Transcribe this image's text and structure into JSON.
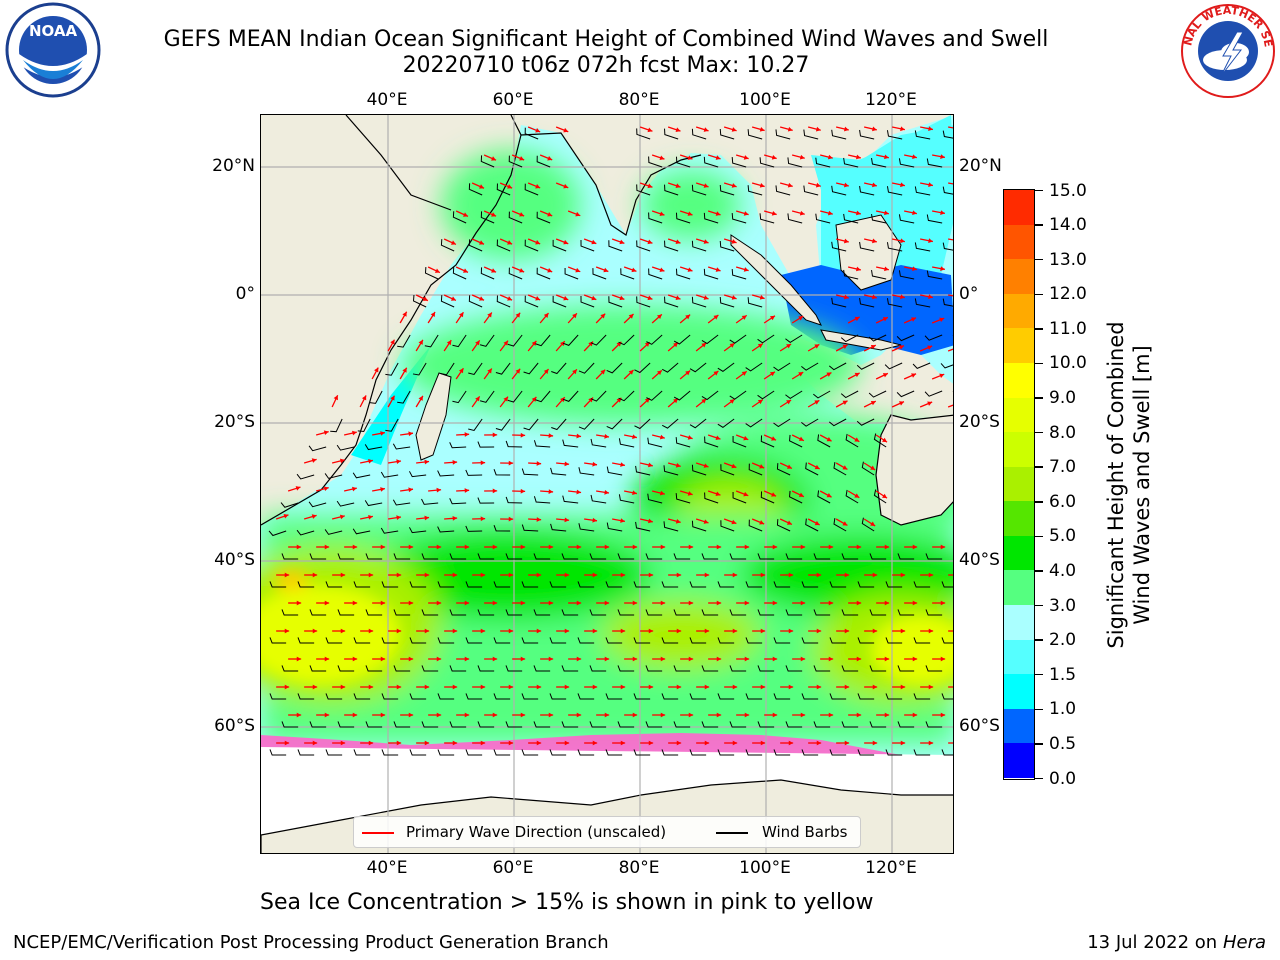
{
  "header": {
    "title": "GEFS MEAN Indian Ocean Significant Height of Combined Wind Waves and Swell",
    "subtitle": "20220710 t06z 072h fcst   Max: 10.27"
  },
  "logos": {
    "left": {
      "icon": "noaa-logo",
      "text": "NOAA"
    },
    "right": {
      "icon": "nws-logo",
      "text": "NATIONAL WEATHER SERVICE"
    }
  },
  "map": {
    "lon_labels": [
      "40°E",
      "60°E",
      "80°E",
      "100°E",
      "120°E"
    ],
    "lat_labels": [
      "20°N",
      "0°",
      "20°S",
      "40°S",
      "60°S"
    ],
    "colors": {
      "land": "#efedde",
      "ice": "#ffffff",
      "grid": "#b0b0b0"
    }
  },
  "colorbar": {
    "title_line1": "Significant Height of Combined",
    "title_line2": "Wind Waves and Swell [m]",
    "labels": [
      "0.0",
      "0.5",
      "1.0",
      "1.5",
      "2.0",
      "3.0",
      "4.0",
      "5.0",
      "6.0",
      "7.0",
      "8.0",
      "9.0",
      "10.0",
      "11.0",
      "12.0",
      "13.0",
      "14.0",
      "15.0"
    ],
    "colors": [
      "#0000ff",
      "#0066ff",
      "#00ffff",
      "#55ffff",
      "#aaffff",
      "#55ff80",
      "#00e600",
      "#55e600",
      "#aaf000",
      "#ccff00",
      "#e6ff00",
      "#ffff00",
      "#ffcc00",
      "#ffaa00",
      "#ff8000",
      "#ff5500",
      "#ff2b00"
    ]
  },
  "legend": {
    "wave_label": "Primary Wave Direction (unscaled)",
    "wind_label": "Wind Barbs",
    "wave_color": "#ff0000",
    "wind_color": "#000000"
  },
  "notes": {
    "sea_ice": "Sea Ice Concentration > 15% is shown in pink to yellow"
  },
  "footer": {
    "left": "NCEP/EMC/Verification Post Processing Product Generation Branch",
    "right_prefix": "13 Jul 2022 on ",
    "right_host": "Hera"
  }
}
